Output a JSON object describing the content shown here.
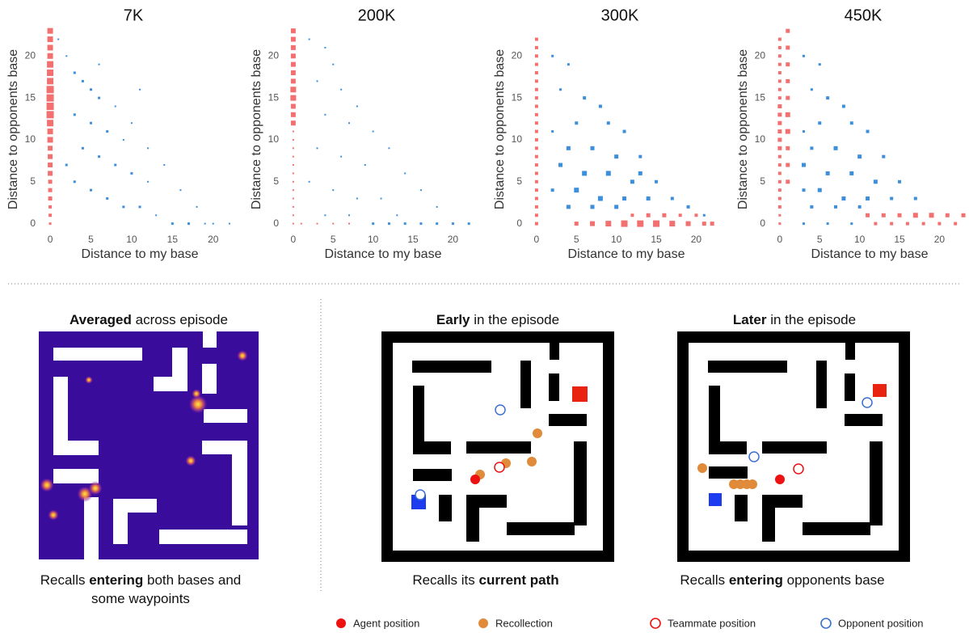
{
  "chart_data": [
    {
      "type": "scatter",
      "title": "7K",
      "x_label": "Distance to my base",
      "y_label": "Distance to opponents base",
      "xlim": [
        -1,
        23
      ],
      "ylim": [
        -1,
        23.5
      ],
      "xticks": [
        0,
        5,
        10,
        15,
        20
      ],
      "yticks": [
        0,
        5,
        10,
        15,
        20
      ],
      "marker": "square",
      "series": [
        {
          "color": "#f27170",
          "x": [
            0,
            0,
            0,
            0,
            0,
            0,
            0,
            0,
            0,
            0,
            0,
            0,
            0,
            0,
            0,
            0,
            0,
            0,
            0,
            0,
            0,
            0,
            0,
            0
          ],
          "values": [
            0,
            1,
            2,
            3,
            4,
            5,
            6,
            7,
            8,
            9,
            10,
            11,
            12,
            13,
            14,
            15,
            16,
            17,
            18,
            19,
            20,
            21,
            22,
            23
          ],
          "sizes": [
            3,
            4,
            4,
            5,
            5,
            5,
            6,
            6,
            6,
            6,
            7,
            7,
            8,
            9,
            9,
            9,
            9,
            8,
            8,
            8,
            7,
            7,
            7,
            7
          ]
        },
        {
          "color": "#3d8fdc",
          "x": [
            1,
            2,
            3,
            4,
            5,
            6,
            3,
            5,
            7,
            9,
            4,
            6,
            8,
            10,
            12,
            5,
            7,
            9,
            11,
            13,
            15,
            17,
            19,
            2,
            3,
            8,
            10,
            12,
            14,
            16,
            18,
            20,
            22,
            11,
            6
          ],
          "values": [
            22,
            20,
            18,
            17,
            16,
            15,
            13,
            12,
            11,
            10,
            9,
            8,
            7,
            6,
            5,
            4,
            3,
            2,
            2,
            1,
            0,
            0,
            0,
            7,
            5,
            14,
            12,
            9,
            7,
            4,
            2,
            0,
            0,
            16,
            19
          ],
          "sizes": [
            2,
            2,
            3,
            3,
            3,
            3,
            3,
            3,
            3,
            2,
            3,
            3,
            3,
            3,
            2,
            3,
            3,
            3,
            3,
            2,
            3,
            3,
            2,
            3,
            3,
            2,
            2,
            2,
            2,
            2,
            2,
            2,
            2,
            2,
            2
          ]
        }
      ]
    },
    {
      "type": "scatter",
      "title": "200K",
      "x_label": "Distance to my base",
      "y_label": "Distance to opponents base",
      "xlim": [
        -1,
        23.5
      ],
      "ylim": [
        -1,
        23.5
      ],
      "xticks": [
        0,
        5,
        10,
        15,
        20
      ],
      "yticks": [
        0,
        5,
        10,
        15,
        20
      ],
      "marker": "square",
      "series": [
        {
          "color": "#f27170",
          "x": [
            0,
            0,
            0,
            0,
            0,
            0,
            0,
            0,
            0,
            0,
            0,
            0,
            0,
            0,
            0,
            0,
            0,
            0,
            0,
            0,
            0,
            0,
            0,
            0,
            1,
            3,
            5,
            7
          ],
          "values": [
            0,
            1,
            2,
            3,
            4,
            5,
            6,
            7,
            8,
            9,
            10,
            11,
            12,
            13,
            14,
            15,
            16,
            17,
            18,
            19,
            20,
            21,
            22,
            23,
            0,
            0,
            0,
            0
          ],
          "sizes": [
            2,
            2,
            2,
            2,
            2,
            2,
            2,
            2,
            2,
            2,
            2,
            2,
            6,
            6,
            6,
            7,
            7,
            6,
            6,
            6,
            6,
            6,
            6,
            6,
            2,
            2,
            2,
            2
          ]
        },
        {
          "color": "#3d8fdc",
          "x": [
            2,
            4,
            5,
            3,
            6,
            8,
            4,
            7,
            10,
            12,
            3,
            6,
            9,
            14,
            2,
            5,
            8,
            11,
            16,
            18,
            4,
            7,
            10,
            12,
            14,
            16,
            18,
            20,
            22,
            13
          ],
          "values": [
            22,
            21,
            19,
            17,
            16,
            14,
            13,
            12,
            11,
            9,
            9,
            8,
            7,
            6,
            5,
            4,
            3,
            3,
            4,
            2,
            1,
            1,
            0,
            0,
            0,
            0,
            0,
            0,
            0,
            1
          ],
          "sizes": [
            2,
            2,
            2,
            2,
            2,
            2,
            2,
            2,
            2,
            2,
            2,
            2,
            2,
            2,
            2,
            2,
            2,
            2,
            2,
            2,
            2,
            2,
            3,
            3,
            3,
            3,
            3,
            3,
            3,
            2
          ]
        }
      ]
    },
    {
      "type": "scatter",
      "title": "300K",
      "x_label": "Distance to my base",
      "y_label": "Distance to opponents base",
      "xlim": [
        -1,
        23.5
      ],
      "ylim": [
        -1,
        23.5
      ],
      "xticks": [
        0,
        5,
        10,
        15,
        20
      ],
      "yticks": [
        0,
        5,
        10,
        15,
        20
      ],
      "marker": "square",
      "series": [
        {
          "color": "#f27170",
          "x": [
            0,
            0,
            0,
            0,
            0,
            0,
            0,
            0,
            0,
            0,
            0,
            0,
            0,
            0,
            0,
            0,
            0,
            0,
            0,
            0,
            0,
            0,
            0,
            5,
            7,
            9,
            11,
            13,
            15,
            17,
            19,
            21,
            22,
            12,
            14,
            16,
            18,
            20
          ],
          "values": [
            0,
            1,
            2,
            3,
            4,
            5,
            6,
            7,
            8,
            9,
            10,
            11,
            12,
            13,
            14,
            15,
            16,
            17,
            18,
            19,
            20,
            21,
            22,
            0,
            0,
            0,
            0,
            0,
            0,
            0,
            0,
            0,
            0,
            1,
            1,
            1,
            1,
            1
          ],
          "sizes": [
            4,
            4,
            4,
            4,
            4,
            4,
            4,
            4,
            4,
            4,
            4,
            4,
            4,
            4,
            4,
            4,
            4,
            4,
            4,
            4,
            4,
            4,
            4,
            5,
            6,
            7,
            8,
            8,
            8,
            7,
            6,
            5,
            5,
            4,
            5,
            5,
            4,
            4
          ]
        },
        {
          "color": "#3d8fdc",
          "x": [
            2,
            4,
            3,
            6,
            8,
            5,
            9,
            11,
            2,
            4,
            7,
            10,
            13,
            3,
            6,
            9,
            12,
            15,
            2,
            5,
            8,
            11,
            14,
            17,
            4,
            7,
            10,
            19,
            21,
            13
          ],
          "values": [
            20,
            19,
            16,
            15,
            14,
            12,
            12,
            11,
            11,
            9,
            9,
            8,
            8,
            7,
            6,
            6,
            5,
            5,
            4,
            4,
            3,
            3,
            3,
            3,
            2,
            2,
            2,
            2,
            1,
            6
          ],
          "sizes": [
            3,
            3,
            3,
            4,
            4,
            4,
            4,
            4,
            3,
            5,
            5,
            5,
            4,
            5,
            6,
            6,
            5,
            4,
            4,
            6,
            6,
            5,
            5,
            4,
            5,
            5,
            5,
            4,
            3,
            5
          ]
        }
      ]
    },
    {
      "type": "scatter",
      "title": "450K",
      "x_label": "Distance to my base",
      "y_label": "Distance to opponents base",
      "xlim": [
        -1,
        23.5
      ],
      "ylim": [
        -1,
        23.5
      ],
      "xticks": [
        0,
        5,
        10,
        15,
        20
      ],
      "yticks": [
        0,
        5,
        10,
        15,
        20
      ],
      "marker": "square",
      "series": [
        {
          "color": "#f27170",
          "x": [
            0,
            0,
            0,
            0,
            0,
            0,
            0,
            0,
            0,
            0,
            0,
            0,
            0,
            0,
            0,
            0,
            0,
            0,
            0,
            0,
            0,
            0,
            0,
            1,
            1,
            1,
            1,
            1,
            1,
            1,
            1,
            1,
            1,
            12,
            14,
            16,
            18,
            20,
            22,
            11,
            13,
            15,
            17,
            19,
            21,
            23
          ],
          "values": [
            0,
            1,
            2,
            3,
            4,
            5,
            6,
            7,
            8,
            9,
            10,
            11,
            12,
            13,
            14,
            15,
            16,
            17,
            18,
            19,
            20,
            21,
            22,
            5,
            7,
            9,
            11,
            13,
            15,
            17,
            19,
            21,
            23,
            0,
            0,
            0,
            0,
            0,
            0,
            1,
            1,
            1,
            1,
            1,
            1,
            1
          ],
          "sizes": [
            3,
            3,
            4,
            4,
            4,
            4,
            4,
            4,
            4,
            5,
            5,
            5,
            5,
            5,
            5,
            4,
            4,
            4,
            4,
            4,
            4,
            4,
            4,
            5,
            5,
            5,
            6,
            6,
            5,
            5,
            5,
            5,
            5,
            4,
            4,
            4,
            4,
            4,
            4,
            5,
            5,
            5,
            6,
            6,
            5,
            5
          ]
        },
        {
          "color": "#3d8fdc",
          "x": [
            3,
            5,
            4,
            6,
            8,
            5,
            9,
            11,
            3,
            4,
            7,
            10,
            13,
            3,
            6,
            9,
            12,
            15,
            3,
            5,
            8,
            11,
            14,
            17,
            4,
            7,
            10,
            3,
            6,
            9
          ],
          "values": [
            20,
            19,
            16,
            15,
            14,
            12,
            12,
            11,
            11,
            9,
            9,
            8,
            8,
            7,
            6,
            6,
            5,
            5,
            4,
            4,
            3,
            3,
            3,
            3,
            2,
            2,
            2,
            0,
            0,
            0
          ],
          "sizes": [
            3,
            3,
            3,
            4,
            4,
            4,
            4,
            4,
            3,
            4,
            5,
            5,
            4,
            5,
            5,
            5,
            5,
            4,
            4,
            5,
            5,
            5,
            4,
            4,
            4,
            4,
            4,
            3,
            3,
            3
          ]
        }
      ]
    }
  ],
  "panels": [
    {
      "title": [
        {
          "text": "Averaged",
          "bold": true
        },
        {
          "text": " across episode",
          "bold": false
        }
      ],
      "caption": [
        {
          "text": "Recalls ",
          "bold": false
        },
        {
          "text": "entering",
          "bold": true
        },
        {
          "text": " both bases and some waypoints",
          "bold": false
        }
      ]
    },
    {
      "title": [
        {
          "text": "Early",
          "bold": true
        },
        {
          "text": " in the episode",
          "bold": false
        }
      ],
      "caption": [
        {
          "text": "Recalls its ",
          "bold": false
        },
        {
          "text": "current path",
          "bold": true
        }
      ]
    },
    {
      "title": [
        {
          "text": "Later",
          "bold": true
        },
        {
          "text": " in the episode",
          "bold": false
        }
      ],
      "caption": [
        {
          "text": "Recalls ",
          "bold": false
        },
        {
          "text": "entering",
          "bold": true
        },
        {
          "text": " opponents base",
          "bold": false
        }
      ]
    }
  ],
  "legend": [
    {
      "label": "Agent position",
      "color": "#ee1111",
      "marker": "dot"
    },
    {
      "label": "Recollection",
      "color": "#e08b3a",
      "marker": "dot"
    },
    {
      "label": "Teammate position",
      "color": "#ee1111",
      "marker": "ring"
    },
    {
      "label": "Opponent position",
      "color": "#3a6fd0",
      "marker": "ring"
    }
  ]
}
